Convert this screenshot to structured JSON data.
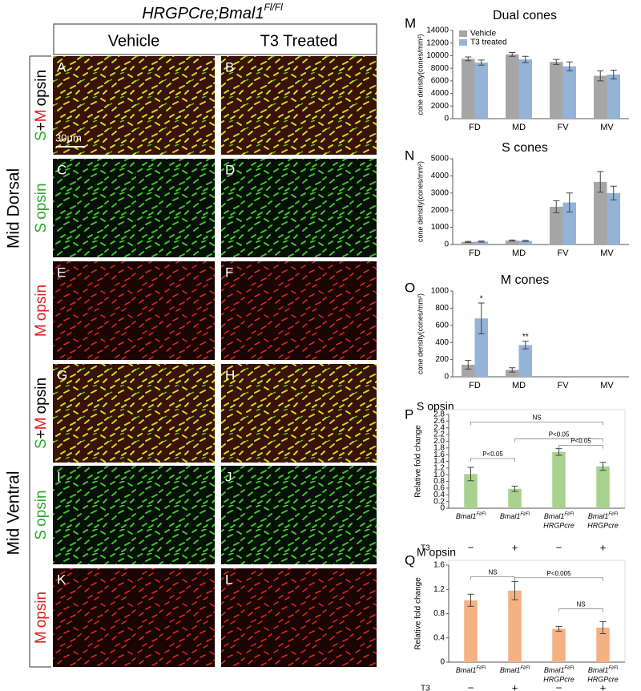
{
  "figure": {
    "title": [
      "HRGPCre;Bmal1",
      "Fl/Fl"
    ],
    "columns": [
      "Vehicle",
      "T3 Treated"
    ],
    "regions": [
      "Mid Dorsal",
      "Mid Ventral"
    ],
    "rows": [
      [
        {
          "text": "S",
          "color": "#2eaa2e"
        },
        {
          "text": "+",
          "color": "#000000"
        },
        {
          "text": "M",
          "color": "#e02020"
        },
        {
          "text": "opsin",
          "color": "#000000"
        }
      ],
      [
        {
          "text": "S",
          "color": "#2eaa2e"
        },
        {
          "text": "opsin",
          "color": "#2eaa2e"
        }
      ],
      [
        {
          "text": "M",
          "color": "#e02020"
        },
        {
          "text": "opsin",
          "color": "#e02020"
        }
      ],
      [
        {
          "text": "S",
          "color": "#2eaa2e"
        },
        {
          "text": "+",
          "color": "#000000"
        },
        {
          "text": "M",
          "color": "#e02020"
        },
        {
          "text": "opsin",
          "color": "#000000"
        }
      ],
      [
        {
          "text": "S",
          "color": "#2eaa2e"
        },
        {
          "text": "opsin",
          "color": "#2eaa2e"
        }
      ],
      [
        {
          "text": "M",
          "color": "#e02020"
        },
        {
          "text": "opsin",
          "color": "#e02020"
        }
      ]
    ],
    "panels": [
      "A",
      "B",
      "C",
      "D",
      "E",
      "F",
      "G",
      "H",
      "I",
      "J",
      "K",
      "L"
    ],
    "scale_bar": "30μm"
  },
  "chart_data": [
    {
      "type": "bar",
      "panel_letter": "M",
      "title": "Dual cones",
      "ylabel": "cone density(cones/mm²)",
      "categories": [
        "FD",
        "MD",
        "FV",
        "MV"
      ],
      "series": [
        {
          "name": "Vehicle",
          "color": "#a6a6a6",
          "values": [
            9500,
            10200,
            9000,
            6800
          ],
          "errors": [
            300,
            300,
            400,
            800
          ]
        },
        {
          "name": "T3 treated",
          "color": "#95b3d7",
          "values": [
            8900,
            9400,
            8300,
            7000
          ],
          "errors": [
            400,
            500,
            700,
            700
          ]
        }
      ],
      "ylim": [
        0,
        14000
      ],
      "yticks": [
        0,
        2000,
        4000,
        6000,
        8000,
        10000,
        12000,
        14000
      ],
      "legend": "upper left"
    },
    {
      "type": "bar",
      "panel_letter": "N",
      "title": "S cones",
      "ylabel": "cone density(cones/mm²)",
      "categories": [
        "FD",
        "MD",
        "FV",
        "MV"
      ],
      "series": [
        {
          "name": "Vehicle",
          "color": "#a6a6a6",
          "values": [
            150,
            230,
            2200,
            3650
          ],
          "errors": [
            30,
            30,
            350,
            600
          ]
        },
        {
          "name": "T3 treated",
          "color": "#95b3d7",
          "values": [
            170,
            210,
            2450,
            3000
          ],
          "errors": [
            30,
            30,
            550,
            400
          ]
        }
      ],
      "ylim": [
        0,
        5000
      ],
      "yticks": [
        0,
        1000,
        2000,
        3000,
        4000,
        5000
      ]
    },
    {
      "type": "bar",
      "panel_letter": "O",
      "title": "M cones",
      "ylabel": "cone density(cones/mm²)",
      "categories": [
        "FD",
        "MD",
        "FV",
        "MV"
      ],
      "series": [
        {
          "name": "Vehicle",
          "color": "#a6a6a6",
          "values": [
            140,
            80,
            null,
            null
          ],
          "errors": [
            50,
            25,
            null,
            null
          ]
        },
        {
          "name": "T3 treated",
          "color": "#95b3d7",
          "values": [
            680,
            370,
            null,
            null
          ],
          "errors": [
            180,
            45,
            null,
            null
          ]
        }
      ],
      "annotations": [
        "*",
        "**"
      ],
      "ylim": [
        0,
        1000
      ],
      "yticks": [
        0,
        200,
        400,
        600,
        800,
        1000
      ]
    },
    {
      "type": "bar",
      "panel_letter": "P",
      "title": "S opsin",
      "ylabel": "Relative fold change",
      "categories": [
        [
          "Bmal1",
          "Fl/Fl"
        ],
        [
          "Bmal1",
          "Fl/Fl"
        ],
        [
          "Bmal1",
          "Fl/Fl",
          "HRGPcre"
        ],
        [
          "Bmal1",
          "Fl/Fl",
          "HRGPcre"
        ]
      ],
      "values": [
        1.02,
        0.58,
        1.68,
        1.25
      ],
      "errors": [
        0.2,
        0.08,
        0.1,
        0.12
      ],
      "color": "#a9d18e",
      "annotations": [
        "NS",
        "P<0.05",
        "P<0.05",
        "P<0.05"
      ],
      "row_label": "T3",
      "row_values": [
        "−",
        "+",
        "−",
        "+"
      ],
      "ylim": [
        0,
        2.8
      ],
      "yticks": [
        0,
        0.2,
        0.4,
        0.6,
        0.8,
        {
          "value": 1,
          "label": "1.0"
        },
        1.2,
        1.4,
        1.6,
        1.8,
        {
          "value": 2,
          "label": "2.0"
        },
        2.2,
        2.4,
        2.6,
        2.8
      ]
    },
    {
      "type": "bar",
      "panel_letter": "Q",
      "title": "M opsin",
      "ylabel": "Relative fold change",
      "categories": [
        [
          "Bmal1",
          "Fl/Fl"
        ],
        [
          "Bmal1",
          "Fl/Fl"
        ],
        [
          "Bmal1",
          "Fl/Fl",
          "HRGPcre"
        ],
        [
          "Bmal1",
          "Fl/Fl",
          "HRGPcre"
        ]
      ],
      "values": [
        1.02,
        1.18,
        0.55,
        0.57
      ],
      "errors": [
        0.1,
        0.15,
        0.04,
        0.1
      ],
      "color": "#f4b183",
      "annotations": [
        "NS",
        "P<0.005",
        "NS"
      ],
      "row_label": "T3",
      "row_values": [
        "−",
        "+",
        "−",
        "+"
      ],
      "ylim": [
        0,
        1.6
      ],
      "yticks": [
        0,
        0.4,
        0.8,
        1.2,
        1.6
      ]
    }
  ]
}
